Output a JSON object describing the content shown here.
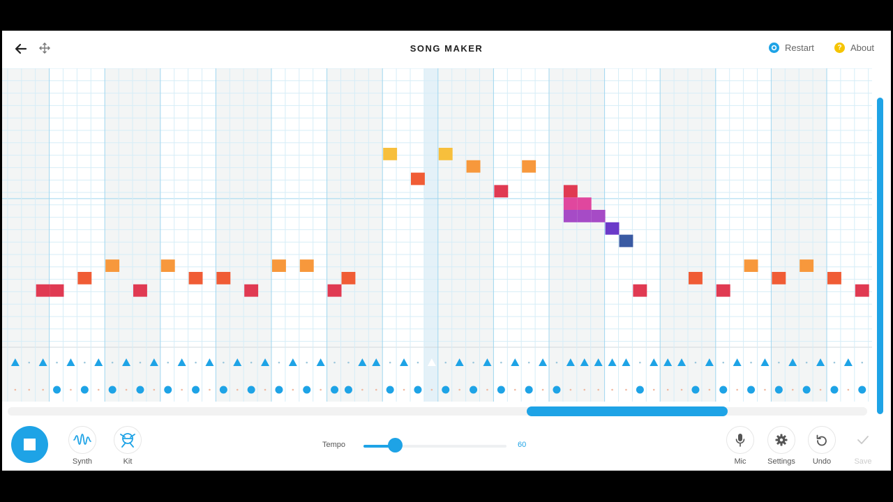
{
  "app": {
    "title": "SONG MAKER",
    "restart_label": "Restart",
    "about_label": "About"
  },
  "grid": {
    "bars_visible": 16,
    "beats_per_bar": 4,
    "pitch_rows_visible": 22,
    "melody_notes": [
      {
        "step": 3,
        "row": 11,
        "color": "#e03a52"
      },
      {
        "step": 4,
        "row": 11,
        "color": "#e03a52"
      },
      {
        "step": 6,
        "row": 10,
        "color": "#f05c35"
      },
      {
        "step": 8,
        "row": 9,
        "color": "#f7983c"
      },
      {
        "step": 10,
        "row": 11,
        "color": "#e03a52"
      },
      {
        "step": 12,
        "row": 9,
        "color": "#f7983c"
      },
      {
        "step": 14,
        "row": 10,
        "color": "#f05c35"
      },
      {
        "step": 16,
        "row": 10,
        "color": "#f05c35"
      },
      {
        "step": 18,
        "row": 11,
        "color": "#e03a52"
      },
      {
        "step": 20,
        "row": 9,
        "color": "#f7983c"
      },
      {
        "step": 22,
        "row": 9,
        "color": "#f7983c"
      },
      {
        "step": 24,
        "row": 11,
        "color": "#e03a52"
      },
      {
        "step": 25,
        "row": 10,
        "color": "#f05c35"
      },
      {
        "step": 28,
        "row": 0,
        "color": "#f7bf3c"
      },
      {
        "step": 30,
        "row": 2,
        "color": "#f05c35"
      },
      {
        "step": 32,
        "row": 0,
        "color": "#f7bf3c"
      },
      {
        "step": 34,
        "row": 1,
        "color": "#f7983c"
      },
      {
        "step": 36,
        "row": 3,
        "color": "#e03a52"
      },
      {
        "step": 38,
        "row": 1,
        "color": "#f7983c"
      },
      {
        "step": 41,
        "row": 3,
        "color": "#e03a52"
      },
      {
        "step": 41,
        "row": 4,
        "color": "#e0479e"
      },
      {
        "step": 42,
        "row": 4,
        "color": "#e0479e"
      },
      {
        "step": 41,
        "row": 5,
        "color": "#a64bc6"
      },
      {
        "step": 42,
        "row": 5,
        "color": "#a64bc6"
      },
      {
        "step": 43,
        "row": 5,
        "color": "#a64bc6"
      },
      {
        "step": 44,
        "row": 6,
        "color": "#6a3ac9"
      },
      {
        "step": 45,
        "row": 7,
        "color": "#3a5aa3"
      },
      {
        "step": 46,
        "row": 11,
        "color": "#e03a52"
      },
      {
        "step": 50,
        "row": 10,
        "color": "#f05c35"
      },
      {
        "step": 52,
        "row": 11,
        "color": "#e03a52"
      },
      {
        "step": 54,
        "row": 9,
        "color": "#f7983c"
      },
      {
        "step": 56,
        "row": 10,
        "color": "#f05c35"
      },
      {
        "step": 58,
        "row": 9,
        "color": "#f7983c"
      },
      {
        "step": 60,
        "row": 10,
        "color": "#f05c35"
      },
      {
        "step": 62,
        "row": 11,
        "color": "#e03a52"
      }
    ],
    "triangle_steps": [
      1,
      3,
      5,
      7,
      9,
      11,
      13,
      15,
      17,
      19,
      21,
      23,
      26,
      27,
      29,
      31,
      33,
      35,
      37,
      39,
      41,
      42,
      43,
      44,
      45,
      47,
      48,
      49,
      51,
      53,
      55,
      57,
      59,
      61
    ],
    "triangle_ghost_steps": [
      31
    ],
    "circle_steps": [
      4,
      6,
      8,
      10,
      12,
      14,
      16,
      18,
      20,
      22,
      24,
      25,
      28,
      30,
      32,
      34,
      36,
      38,
      40,
      46,
      50,
      52,
      54,
      56,
      58,
      60,
      62
    ],
    "highlight_step": 31,
    "colors": {
      "accent": "#1ea3e6",
      "grid_line": "#d6edf7",
      "bar_line": "#9fd6ef",
      "shaded_bar": "#f3f5f5"
    }
  },
  "toolbar": {
    "synth_label": "Synth",
    "kit_label": "Kit",
    "tempo_label": "Tempo",
    "tempo_value": "60",
    "mic_label": "Mic",
    "settings_label": "Settings",
    "undo_label": "Undo",
    "save_label": "Save"
  }
}
